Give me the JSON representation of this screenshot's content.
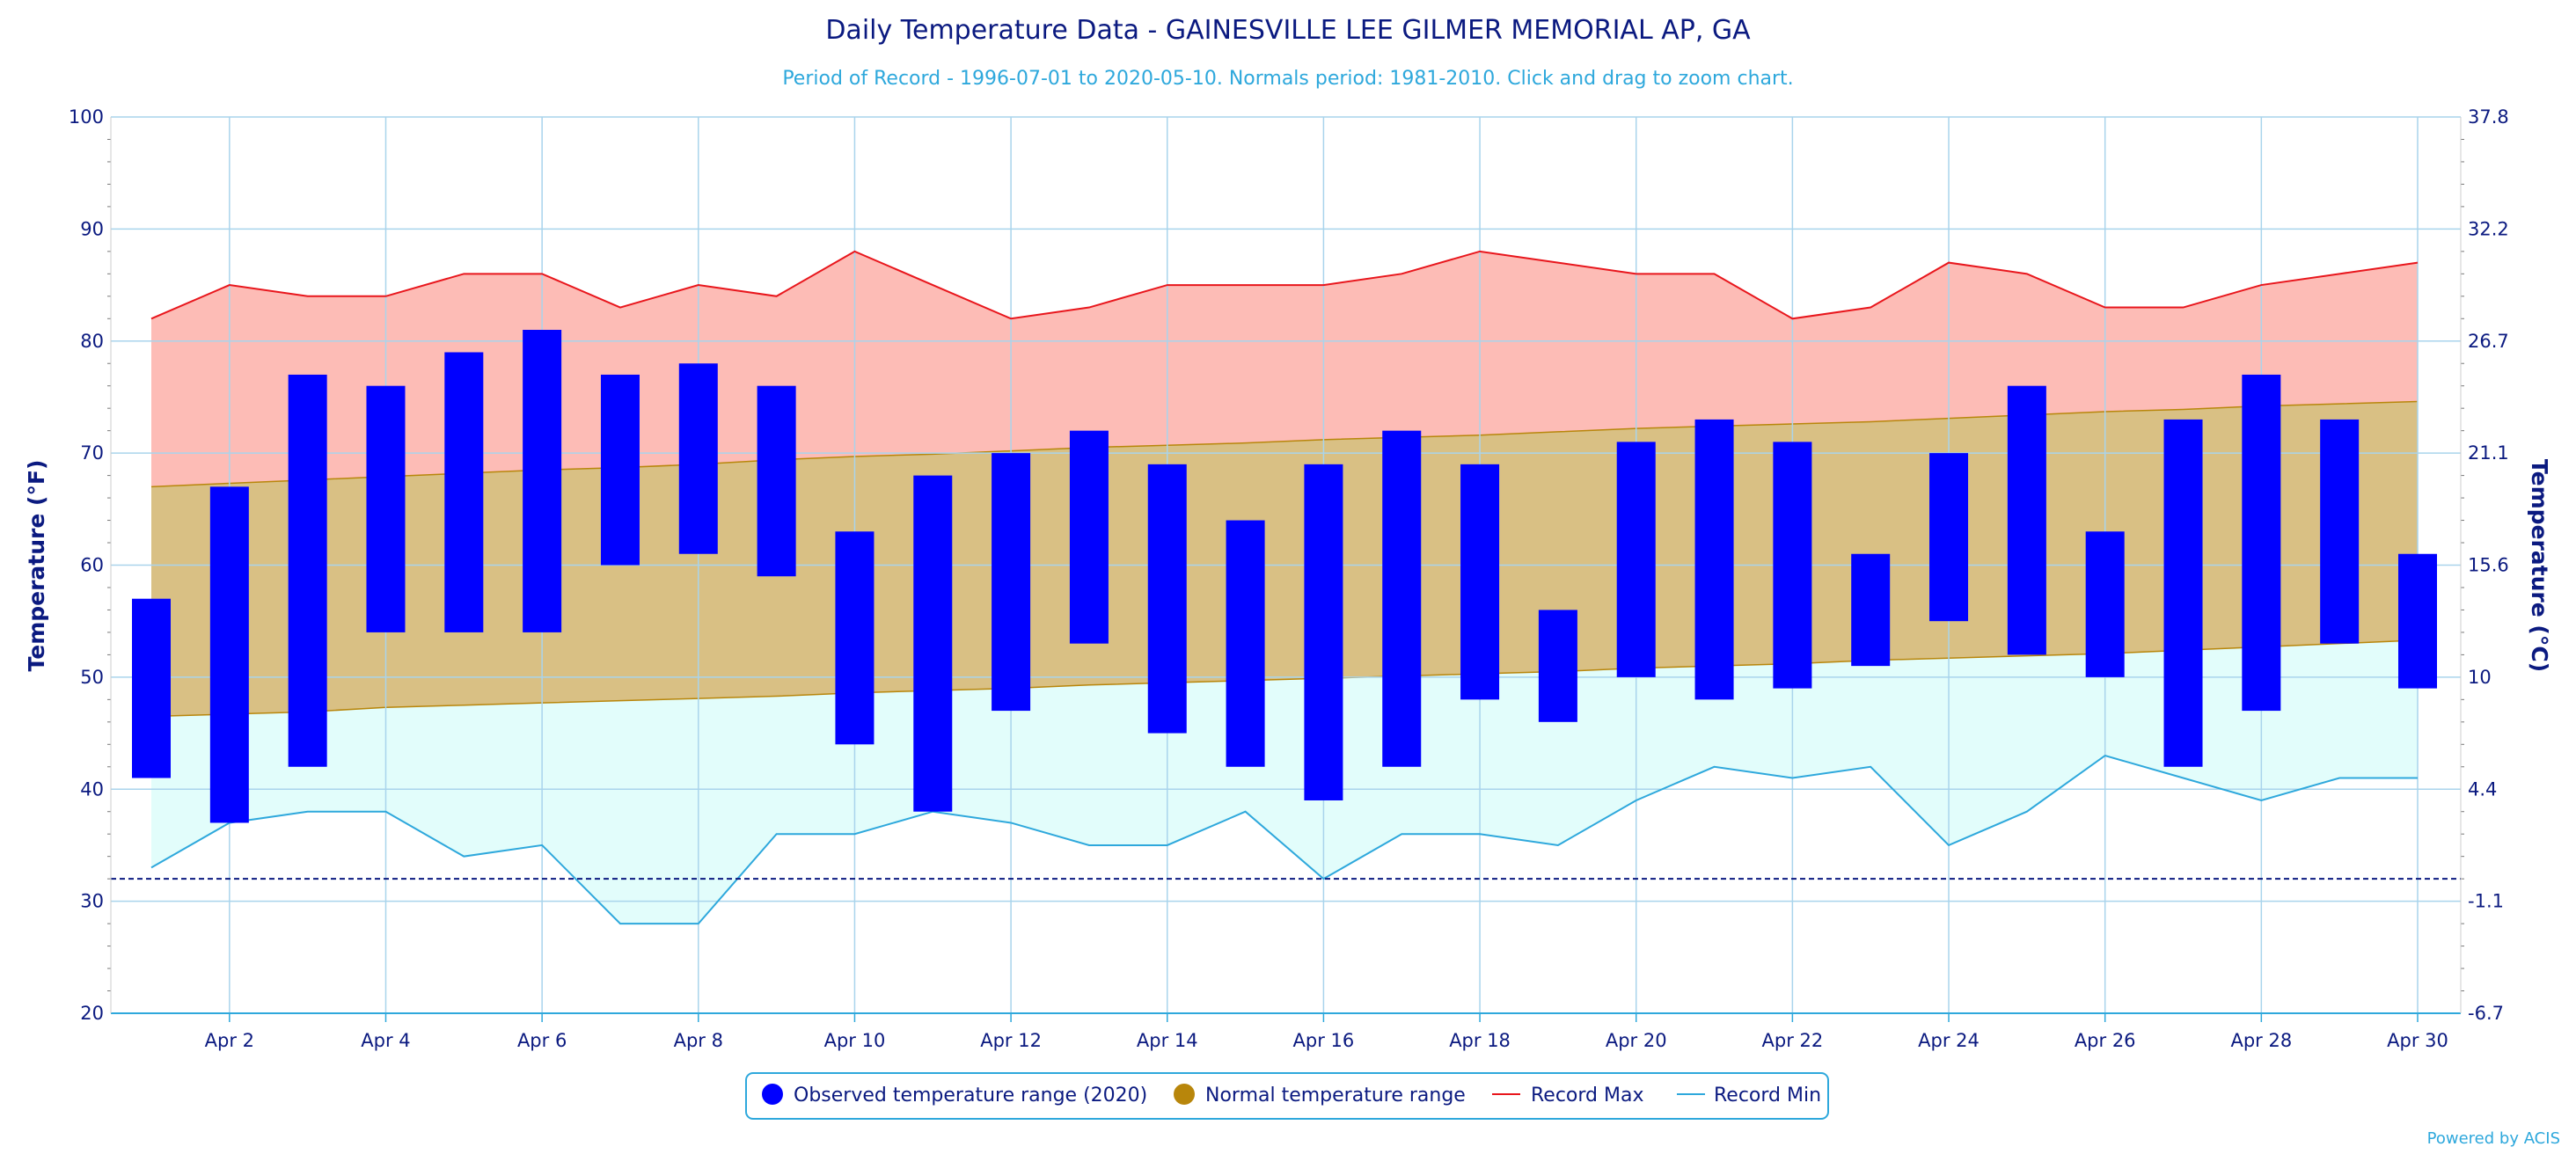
{
  "chart_data": {
    "type": "bar",
    "title": "Daily Temperature Data - GAINESVILLE LEE GILMER MEMORIAL AP, GA",
    "subtitle": "Period of Record - 1996-07-01 to 2020-05-10. Normals period: 1981-2010. Click and drag to zoom chart.",
    "ylabel_left": "Temperature (°F)",
    "ylabel_right": "Temperature (°C)",
    "ylim": [
      20,
      100
    ],
    "yticks_left": [
      "20",
      "30",
      "40",
      "50",
      "60",
      "70",
      "80",
      "90",
      "100"
    ],
    "yticks_right": [
      "-6.7",
      "-1.1",
      "4.4",
      "10",
      "15.6",
      "21.1",
      "26.7",
      "32.2",
      "37.8"
    ],
    "freezing_line": 32,
    "days": [
      1,
      2,
      3,
      4,
      5,
      6,
      7,
      8,
      9,
      10,
      11,
      12,
      13,
      14,
      15,
      16,
      17,
      18,
      19,
      20,
      21,
      22,
      23,
      24,
      25,
      26,
      27,
      28,
      29,
      30
    ],
    "x_tick_labels": [
      "Apr 2",
      "Apr 4",
      "Apr 6",
      "Apr 8",
      "Apr 10",
      "Apr 12",
      "Apr 14",
      "Apr 16",
      "Apr 18",
      "Apr 20",
      "Apr 22",
      "Apr 24",
      "Apr 26",
      "Apr 28",
      "Apr 30"
    ],
    "x_tick_days": [
      2,
      4,
      6,
      8,
      10,
      12,
      14,
      16,
      18,
      20,
      22,
      24,
      26,
      28,
      30
    ],
    "series": [
      {
        "name": "Observed temperature range (2020)",
        "color": "#0000ff",
        "low": [
          41,
          37,
          42,
          54,
          54,
          54,
          60,
          61,
          59,
          44,
          38,
          47,
          53,
          45,
          42,
          39,
          42,
          48,
          46,
          50,
          48,
          49,
          51,
          55,
          52,
          50,
          42,
          47,
          53,
          49
        ],
        "high": [
          57,
          67,
          77,
          76,
          79,
          81,
          77,
          78,
          76,
          63,
          68,
          70,
          72,
          69,
          64,
          69,
          72,
          69,
          56,
          71,
          73,
          71,
          61,
          70,
          76,
          63,
          73,
          77,
          73,
          61
        ]
      },
      {
        "name": "Normal temperature range",
        "color": "#b8860b",
        "low": [
          46.5,
          46.7,
          46.9,
          47.3,
          47.5,
          47.7,
          47.9,
          48.1,
          48.3,
          48.6,
          48.8,
          49.0,
          49.3,
          49.5,
          49.7,
          49.9,
          50.1,
          50.3,
          50.5,
          50.8,
          51.0,
          51.2,
          51.5,
          51.7,
          51.9,
          52.1,
          52.4,
          52.7,
          53.0,
          53.3
        ],
        "high": [
          67.0,
          67.3,
          67.6,
          67.9,
          68.2,
          68.5,
          68.7,
          69.0,
          69.4,
          69.7,
          69.9,
          70.2,
          70.5,
          70.7,
          70.9,
          71.2,
          71.4,
          71.6,
          71.9,
          72.2,
          72.4,
          72.6,
          72.8,
          73.1,
          73.4,
          73.7,
          73.9,
          74.2,
          74.4,
          74.6
        ]
      },
      {
        "name": "Record Max",
        "color": "#e8161c",
        "values": [
          82,
          85,
          84,
          84,
          86,
          86,
          83,
          85,
          84,
          88,
          85,
          82,
          83,
          85,
          85,
          85,
          86,
          88,
          87,
          86,
          86,
          82,
          83,
          87,
          86,
          83,
          83,
          85,
          86,
          87
        ]
      },
      {
        "name": "Record Min",
        "color": "#2ea8dc",
        "values": [
          33,
          37,
          38,
          38,
          34,
          35,
          28,
          28,
          36,
          36,
          38,
          37,
          35,
          35,
          38,
          32,
          36,
          36,
          35,
          39,
          42,
          41,
          42,
          35,
          38,
          43,
          41,
          39,
          41,
          41
        ]
      }
    ],
    "colors": {
      "text": "#0b1a80",
      "subtitle": "#2ea8dc",
      "grid": "#a9d4ec",
      "record_max_fill": "#fdbcb6",
      "normal_fill": "#d9c084",
      "record_min_fill": "#e2fdfb",
      "freezing_line": "#0b1a80"
    },
    "legend_position": "bottom-center",
    "credit": "Powered by ACIS"
  }
}
